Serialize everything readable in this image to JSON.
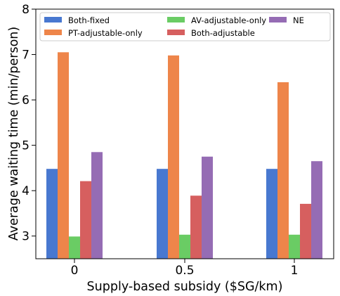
{
  "chart_data": {
    "type": "bar",
    "xlabel": "Supply-based subsidy ($SG/km)",
    "ylabel": "Average waiting time (min/person)",
    "categories": [
      "0",
      "0.5",
      "1"
    ],
    "ylim": [
      2.5,
      8
    ],
    "yticks": [
      3,
      4,
      5,
      6,
      7,
      8
    ],
    "grid": false,
    "legend_placement": "top",
    "series": [
      {
        "name": "Both-fixed",
        "color": "#4878d0",
        "values": [
          4.48,
          4.48,
          4.48
        ]
      },
      {
        "name": "PT-adjustable-only",
        "color": "#ee854a",
        "values": [
          7.05,
          6.98,
          6.39
        ]
      },
      {
        "name": "AV-adjustable-only",
        "color": "#6acc64",
        "values": [
          2.99,
          3.03,
          3.03
        ]
      },
      {
        "name": "Both-adjustable",
        "color": "#d65f5f",
        "values": [
          4.21,
          3.89,
          3.71
        ]
      },
      {
        "name": "NE",
        "color": "#956cb4",
        "values": [
          4.85,
          4.75,
          4.65
        ]
      }
    ]
  }
}
